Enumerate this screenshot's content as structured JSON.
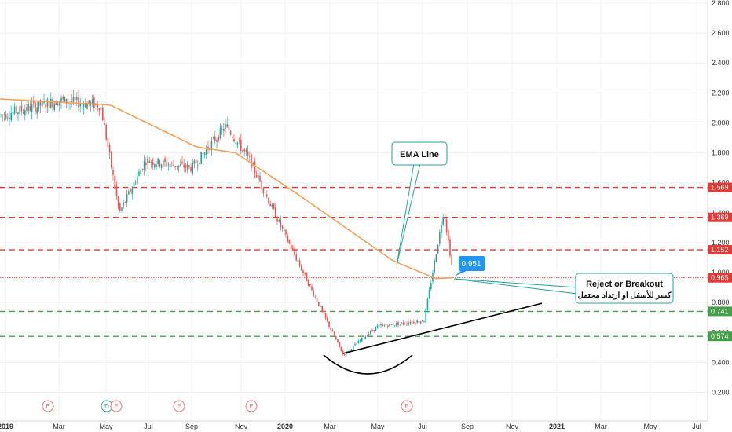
{
  "chart_data": {
    "type": "candlestick",
    "y_axis": {
      "ylim": [
        0.1,
        2.8
      ],
      "ticks": [
        "0.200",
        "0.400",
        "0.600",
        "0.800",
        "1.000",
        "1.200",
        "1.400",
        "1.600",
        "1.800",
        "2.000",
        "2.200",
        "2.400",
        "2.600",
        "2.800"
      ],
      "scale": "linear"
    },
    "x_axis": {
      "ticks": [
        "2019",
        "Mar",
        "May",
        "Jul",
        "Sep",
        "Nov",
        "2020",
        "Mar",
        "May",
        "Jul",
        "Sep",
        "Nov",
        "2021",
        "Mar",
        "May",
        "Jul"
      ]
    },
    "price_path": [
      [
        "2019",
        2.05
      ],
      [
        "Mar",
        2.15
      ],
      [
        "May",
        2.12
      ],
      [
        "May",
        1.4
      ],
      [
        "Jul",
        1.75
      ],
      [
        "Sep",
        1.7
      ],
      [
        "Nov",
        1.98
      ],
      [
        "Nov",
        1.75
      ],
      [
        "2020",
        1.28
      ],
      [
        "Mar",
        0.45
      ],
      [
        "May",
        0.64
      ],
      [
        "Jul",
        0.68
      ],
      [
        "Jul",
        1.42
      ],
      [
        "Sep",
        0.95
      ]
    ],
    "ema_path": [
      [
        "2019",
        2.16
      ],
      [
        "May",
        2.12
      ],
      [
        "Sep",
        1.84
      ],
      [
        "Nov",
        1.8
      ],
      [
        "2020",
        1.52
      ],
      [
        "May",
        1.08
      ],
      [
        "Jul",
        0.96
      ],
      [
        "Sep",
        0.965
      ]
    ],
    "horizontal_levels": [
      {
        "value": 1.569,
        "label": "1.569",
        "color": "#e53935",
        "style": "dashed"
      },
      {
        "value": 1.369,
        "label": "1.369",
        "color": "#e53935",
        "style": "dashed"
      },
      {
        "value": 1.152,
        "label": "1.152",
        "color": "#e53935",
        "style": "dashed"
      },
      {
        "value": 0.965,
        "label": "0.965",
        "color": "#e53935",
        "style": "dotted"
      },
      {
        "value": 0.741,
        "label": "0.741",
        "color": "#43a047",
        "style": "dashed"
      },
      {
        "value": 0.574,
        "label": "0.574",
        "color": "#43a047",
        "style": "dashed"
      }
    ],
    "annotations": {
      "ema_label": "EMA Line",
      "price_callout": "0.951",
      "reject_title": "Reject or Breakout",
      "reject_subtitle": "كسر للأسفل او ارتداد محتمل"
    },
    "events": [
      {
        "x": "Jan",
        "labels": [
          "E"
        ]
      },
      {
        "x": "May",
        "labels": [
          "D",
          "E"
        ]
      },
      {
        "x": "Aug",
        "labels": [
          "E"
        ]
      },
      {
        "x": "Nov",
        "labels": [
          "E"
        ]
      },
      {
        "x": "Jun",
        "labels": [
          "E"
        ]
      }
    ],
    "colors": {
      "up": "#26a69a",
      "down": "#ef5350",
      "ema": "#f5a05a",
      "trendline": "#000000",
      "callout": "#2196f3",
      "annotation_border": "#26a69a"
    },
    "grid": true
  }
}
